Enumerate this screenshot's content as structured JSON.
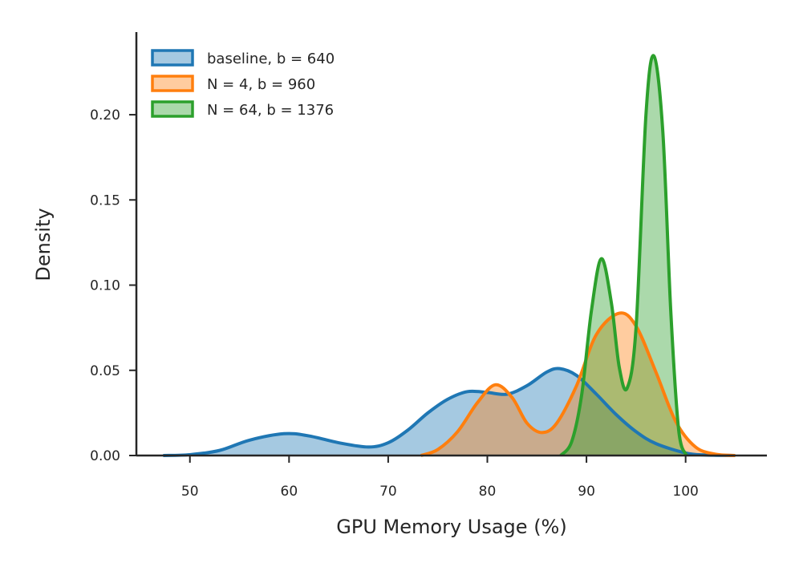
{
  "chart_data": {
    "type": "area",
    "title": "",
    "xlabel": "GPU Memory Usage (%)",
    "ylabel": "Density",
    "xlim": [
      44.6,
      108.2
    ],
    "ylim": [
      0,
      0.2485
    ],
    "xticks": [
      50,
      60,
      70,
      80,
      90,
      100
    ],
    "yticks": [
      0.0,
      0.05,
      0.1,
      0.15,
      0.2
    ],
    "xtick_labels": [
      "50",
      "60",
      "70",
      "80",
      "90",
      "100"
    ],
    "ytick_labels": [
      "0.00",
      "0.05",
      "0.10",
      "0.15",
      "0.20"
    ],
    "grid": false,
    "legend_position": "top-left",
    "series": [
      {
        "name": "baseline, b = 640",
        "color": "#1f77b4",
        "x": [
          47.3,
          50,
          53,
          56,
          59.5,
          62,
          65,
          68,
          70,
          72,
          74,
          76,
          78,
          80,
          82,
          84,
          86,
          87.3,
          89,
          91,
          93,
          95,
          97,
          100,
          102,
          105
        ],
        "y": [
          0.0,
          0.0005,
          0.003,
          0.009,
          0.0128,
          0.0115,
          0.0075,
          0.005,
          0.0075,
          0.015,
          0.025,
          0.033,
          0.0375,
          0.037,
          0.036,
          0.041,
          0.049,
          0.051,
          0.047,
          0.036,
          0.024,
          0.014,
          0.007,
          0.0015,
          0.0003,
          0.0
        ]
      },
      {
        "name": "N = 4, b = 960",
        "color": "#ff7f0e",
        "x": [
          73.3,
          75,
          77,
          79,
          80.8,
          82.5,
          84,
          85.5,
          87,
          89,
          91,
          93.3,
          95,
          97,
          99,
          101,
          103,
          105
        ],
        "y": [
          0.0,
          0.0035,
          0.014,
          0.031,
          0.0415,
          0.034,
          0.019,
          0.0135,
          0.019,
          0.041,
          0.071,
          0.0835,
          0.076,
          0.049,
          0.02,
          0.005,
          0.0008,
          0.0
        ]
      },
      {
        "name": "N = 64, b = 1376",
        "color": "#2ca02c",
        "x": [
          87.4,
          88.5,
          89.5,
          90.5,
          91.5,
          92.5,
          93.3,
          94.1,
          95,
          96,
          96.8,
          97.7,
          98.5,
          99.3,
          100.1
        ],
        "y": [
          0.0,
          0.008,
          0.035,
          0.085,
          0.1155,
          0.09,
          0.052,
          0.0395,
          0.075,
          0.2,
          0.2345,
          0.19,
          0.085,
          0.015,
          0.0
        ]
      }
    ]
  }
}
